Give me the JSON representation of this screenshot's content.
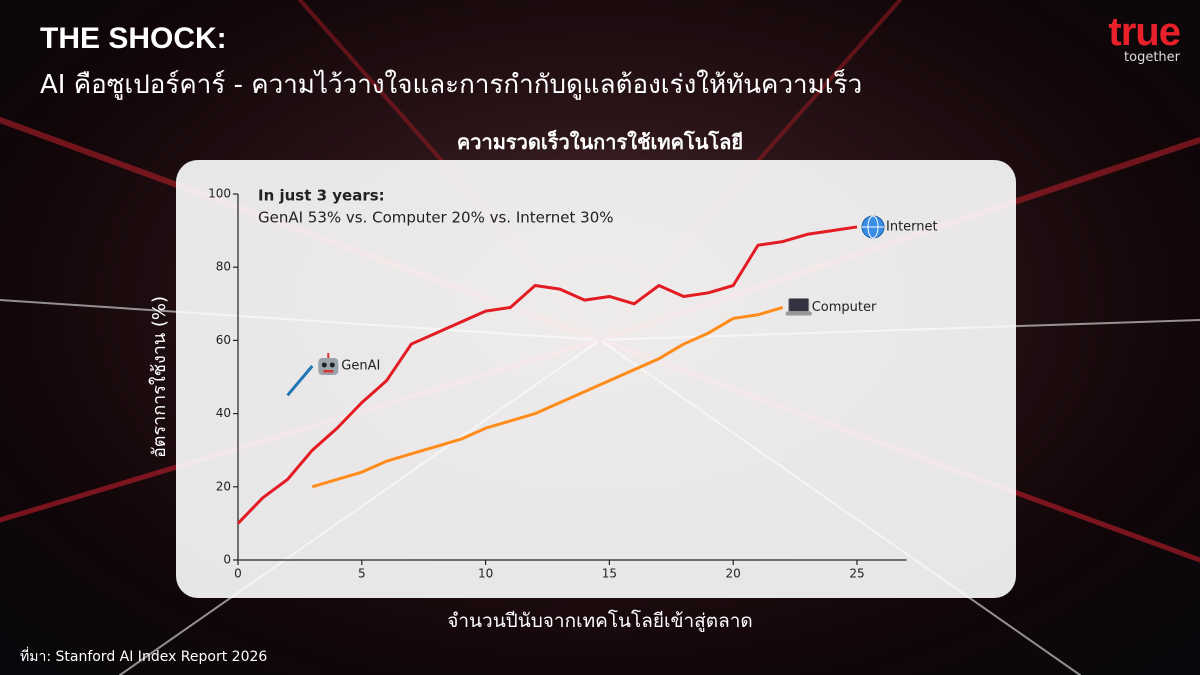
{
  "header": {
    "kicker": "THE SHOCK:",
    "title": "AI คือซูเปอร์คาร์ - ความไว้วางใจและการกำกับดูแลต้องเร่งให้ทันความเร็ว"
  },
  "logo": {
    "word": "true",
    "tagline": "together"
  },
  "footer": {
    "source": "ที่มา: Stanford AI Index Report 2026"
  },
  "chart_data": {
    "type": "line",
    "title": "ความรวดเร็วในการใช้เทคโนโลยี",
    "x_label": "จำนวนปีนับจากเทคโนโลยีเข้าสู่ตลาด",
    "y_label": "อัตราการใช้งาน (%)",
    "annotations": [
      "In just 3 years:",
      "GenAI 53% vs. Computer 20% vs. Internet 30%"
    ],
    "xlim": [
      0,
      27
    ],
    "ylim": [
      0,
      100
    ],
    "xticks": [
      0,
      5,
      10,
      15,
      20,
      25
    ],
    "yticks": [
      0,
      20,
      40,
      60,
      80,
      100
    ],
    "series": [
      {
        "name": "Internet",
        "color": "#e31b23",
        "x": [
          0,
          1,
          2,
          3,
          4,
          5,
          6,
          7,
          8,
          9,
          10,
          11,
          12,
          13,
          14,
          15,
          16,
          17,
          18,
          19,
          20,
          21,
          22,
          23,
          24,
          25
        ],
        "values": [
          10,
          17,
          22,
          30,
          36,
          43,
          49,
          59,
          62,
          65,
          68,
          69,
          75,
          74,
          71,
          72,
          70,
          75,
          72,
          73,
          75,
          86,
          87,
          89,
          90,
          91
        ]
      },
      {
        "name": "Computer",
        "color": "#ff8c1a",
        "x": [
          3,
          4,
          5,
          6,
          7,
          8,
          9,
          10,
          11,
          12,
          13,
          14,
          15,
          16,
          17,
          18,
          19,
          20,
          21,
          22
        ],
        "values": [
          20,
          22,
          24,
          27,
          29,
          31,
          33,
          36,
          38,
          40,
          43,
          46,
          49,
          52,
          55,
          59,
          62,
          66,
          67,
          69
        ]
      },
      {
        "name": "GenAI",
        "color": "#1f77b4",
        "x": [
          2,
          3
        ],
        "values": [
          45,
          53
        ]
      }
    ]
  }
}
